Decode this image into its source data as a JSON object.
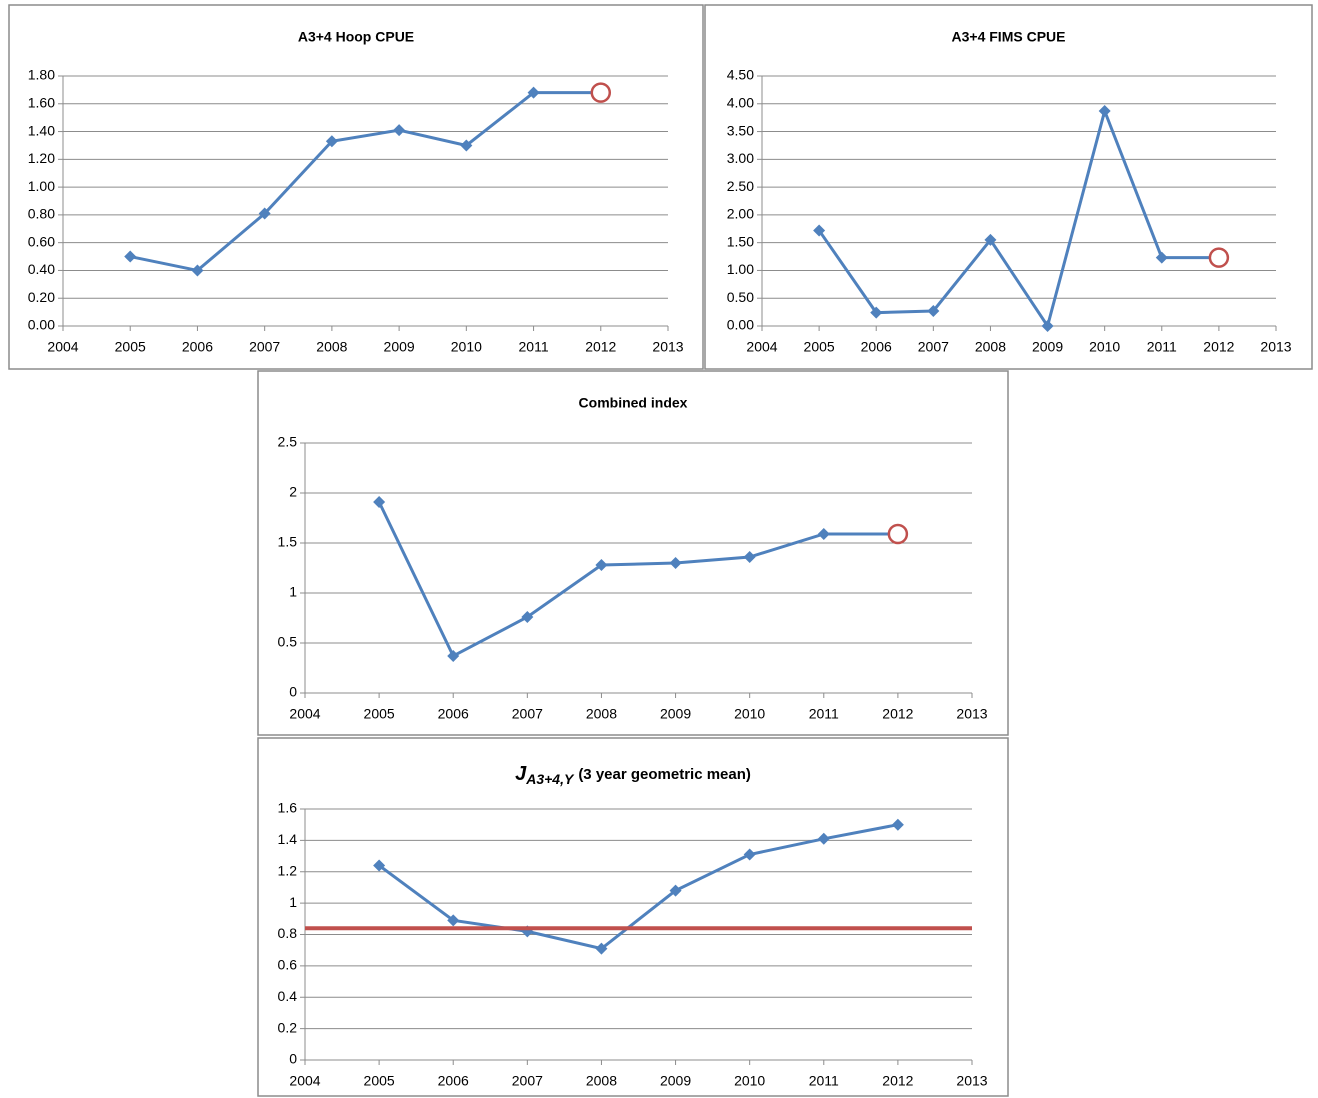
{
  "chart_data": [
    {
      "type": "line",
      "title": "A3+4 Hoop CPUE",
      "x": [
        2005,
        2006,
        2007,
        2008,
        2009,
        2010,
        2011,
        2012
      ],
      "series": [
        {
          "color": "#4f81bd",
          "values": [
            0.5,
            0.4,
            0.81,
            1.33,
            1.41,
            1.3,
            1.68,
            1.68
          ]
        }
      ],
      "end_marker": {
        "shape": "circle",
        "color": "#c0504d"
      },
      "xlim": [
        2004,
        2013
      ],
      "xticks": [
        2004,
        2005,
        2006,
        2007,
        2008,
        2009,
        2010,
        2011,
        2012,
        2013
      ],
      "ylim": [
        0,
        1.8
      ],
      "yticks": [
        {
          "value": 0,
          "label": "0.00"
        },
        {
          "value": 0.2,
          "label": "0.20"
        },
        {
          "value": 0.4,
          "label": "0.40"
        },
        {
          "value": 0.6,
          "label": "0.60"
        },
        {
          "value": 0.8,
          "label": "0.80"
        },
        {
          "value": 1,
          "label": "1.00"
        },
        {
          "value": 1.2,
          "label": "1.20"
        },
        {
          "value": 1.4,
          "label": "1.40"
        },
        {
          "value": 1.6,
          "label": "1.60"
        },
        {
          "value": 1.8,
          "label": "1.80"
        }
      ],
      "grid": true
    },
    {
      "type": "line",
      "title": "A3+4 FIMS CPUE",
      "x": [
        2005,
        2006,
        2007,
        2008,
        2009,
        2010,
        2011,
        2012
      ],
      "series": [
        {
          "color": "#4f81bd",
          "values": [
            1.72,
            0.24,
            0.27,
            1.55,
            0.0,
            3.87,
            1.23,
            1.23
          ]
        }
      ],
      "end_marker": {
        "shape": "circle",
        "color": "#c0504d"
      },
      "xlim": [
        2004,
        2013
      ],
      "xticks": [
        2004,
        2005,
        2006,
        2007,
        2008,
        2009,
        2010,
        2011,
        2012,
        2013
      ],
      "ylim": [
        0,
        4.5
      ],
      "yticks": [
        {
          "value": 0,
          "label": "0.00"
        },
        {
          "value": 0.5,
          "label": "0.50"
        },
        {
          "value": 1,
          "label": "1.00"
        },
        {
          "value": 1.5,
          "label": "1.50"
        },
        {
          "value": 2,
          "label": "2.00"
        },
        {
          "value": 2.5,
          "label": "2.50"
        },
        {
          "value": 3,
          "label": "3.00"
        },
        {
          "value": 3.5,
          "label": "3.50"
        },
        {
          "value": 4,
          "label": "4.00"
        },
        {
          "value": 4.5,
          "label": "4.50"
        }
      ],
      "grid": true
    },
    {
      "type": "line",
      "title": "Combined index",
      "x": [
        2005,
        2006,
        2007,
        2008,
        2009,
        2010,
        2011,
        2012
      ],
      "series": [
        {
          "color": "#4f81bd",
          "values": [
            1.91,
            0.37,
            0.76,
            1.28,
            1.3,
            1.36,
            1.59,
            1.59
          ]
        }
      ],
      "end_marker": {
        "shape": "circle",
        "color": "#c0504d"
      },
      "xlim": [
        2004,
        2013
      ],
      "xticks": [
        2004,
        2005,
        2006,
        2007,
        2008,
        2009,
        2010,
        2011,
        2012,
        2013
      ],
      "ylim": [
        0,
        2.5
      ],
      "yticks": [
        0,
        0.5,
        1,
        1.5,
        2,
        2.5
      ],
      "grid": true
    },
    {
      "type": "line",
      "title": "J",
      "title_subscript": "A3+4,Y",
      "subtitle": "(3 year geometric mean)",
      "x": [
        2005,
        2006,
        2007,
        2008,
        2009,
        2010,
        2011,
        2012
      ],
      "series": [
        {
          "color": "#4f81bd",
          "values": [
            1.24,
            0.89,
            0.82,
            0.71,
            1.08,
            1.31,
            1.41,
            1.5
          ]
        }
      ],
      "reference_line": {
        "value": 0.84,
        "color": "#c0504d"
      },
      "xlim": [
        2004,
        2013
      ],
      "xticks": [
        2004,
        2005,
        2006,
        2007,
        2008,
        2009,
        2010,
        2011,
        2012,
        2013
      ],
      "ylim": [
        0,
        1.6
      ],
      "yticks": [
        0,
        0.2,
        0.4,
        0.6,
        0.8,
        1,
        1.2,
        1.4,
        1.6
      ],
      "grid": true
    }
  ]
}
